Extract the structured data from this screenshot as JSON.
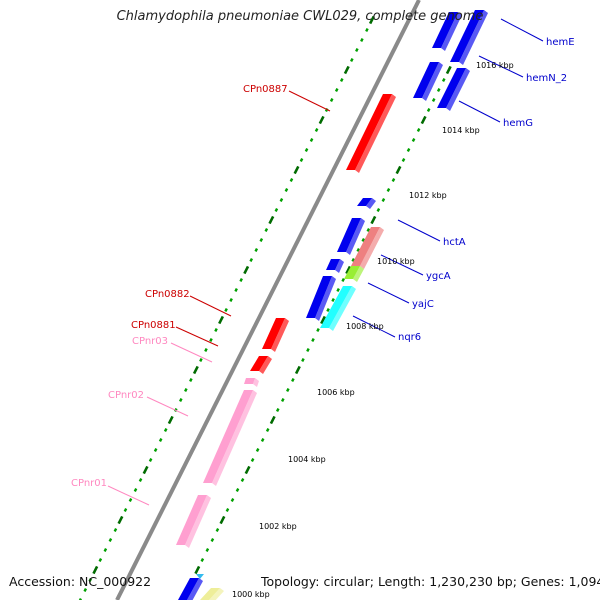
{
  "title": "Chlamydophila pneumoniae CWL029, complete genome",
  "footer": {
    "accession": "Accession: NC_000922",
    "topology": "Topology: circular",
    "length": "Length: 1,230,230 bp",
    "genes": "Genes: 1,094"
  },
  "colors": {
    "backbone": "#8a8a8a",
    "tick_minor": "#00a000",
    "tick_major": "#006b00",
    "red_gene": "#ff0000",
    "blue_gene": "#0000ee",
    "pink_rna": "#ff9fd0",
    "salmon_gene": "#ee8080",
    "lime_gene": "#99ee33",
    "cyan_gene": "#22ffff",
    "khaki_gene": "#eeee99",
    "label_red": "#cc0000",
    "label_pink": "#ff88c0",
    "label_blue": "#0000cc"
  },
  "scale_labels": [
    "1000 kbp",
    "1002 kbp",
    "1004 kbp",
    "1006 kbp",
    "1008 kbp",
    "1010 kbp",
    "1012 kbp",
    "1014 kbp",
    "1016 kbp"
  ],
  "feature_labels": {
    "left": [
      {
        "id": "cpn0887",
        "text": "CPn0887",
        "color": "label_red"
      },
      {
        "id": "cpn0882",
        "text": "CPn0882",
        "color": "label_red"
      },
      {
        "id": "cpn0881",
        "text": "CPn0881",
        "color": "label_red"
      },
      {
        "id": "cpnr03",
        "text": "CPnr03",
        "color": "label_pink"
      },
      {
        "id": "cpnr02",
        "text": "CPnr02",
        "color": "label_pink"
      },
      {
        "id": "cpnr01",
        "text": "CPnr01",
        "color": "label_pink"
      }
    ],
    "right": [
      {
        "id": "heme",
        "text": "hemE",
        "color": "label_blue"
      },
      {
        "id": "hemn2",
        "text": "hemN_2",
        "color": "label_blue"
      },
      {
        "id": "hemg",
        "text": "hemG",
        "color": "label_blue"
      },
      {
        "id": "hcta",
        "text": "hctA",
        "color": "label_blue"
      },
      {
        "id": "ygca",
        "text": "ygcA",
        "color": "label_blue"
      },
      {
        "id": "yajc",
        "text": "yajC",
        "color": "label_blue"
      },
      {
        "id": "nqr6",
        "text": "nqr6",
        "color": "label_blue"
      }
    ]
  }
}
